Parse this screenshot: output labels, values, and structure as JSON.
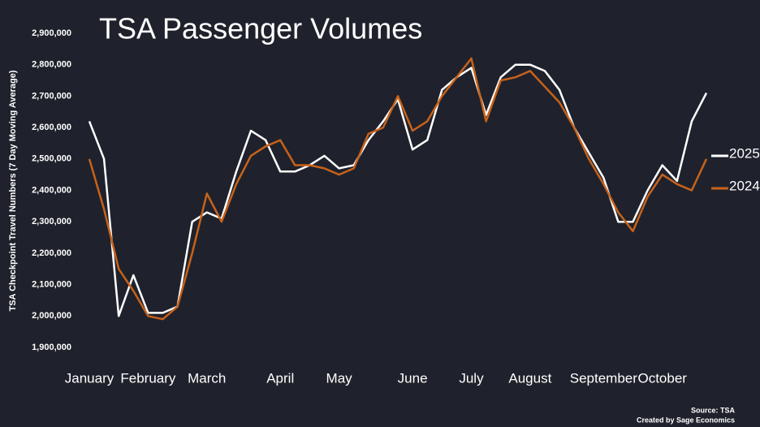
{
  "chart_data": {
    "type": "line",
    "title": "TSA Passenger Volumes",
    "y_label": "TSA Checkpoint Travel Numbers (7 Day Moving Average)",
    "source": "Source: TSA",
    "credit": "Created by Sage Economics",
    "categories": [
      "January",
      null,
      null,
      null,
      "February",
      null,
      null,
      null,
      "March",
      null,
      null,
      null,
      null,
      "April",
      null,
      null,
      null,
      "May",
      null,
      null,
      null,
      null,
      "June",
      null,
      null,
      null,
      "July",
      null,
      null,
      null,
      "August",
      null,
      null,
      null,
      null,
      "September",
      null,
      null,
      null,
      "October",
      null,
      null,
      null
    ],
    "series": [
      {
        "name": "2025",
        "color": "#ffffff",
        "values": [
          2620000,
          2500000,
          2000000,
          2130000,
          2010000,
          2010000,
          2030000,
          2300000,
          2330000,
          2310000,
          2460000,
          2590000,
          2560000,
          2460000,
          2460000,
          2480000,
          2510000,
          2470000,
          2480000,
          2560000,
          2620000,
          2690000,
          2530000,
          2560000,
          2720000,
          2760000,
          2790000,
          2640000,
          2760000,
          2800000,
          2800000,
          2780000,
          2720000,
          2600000,
          2520000,
          2440000,
          2300000,
          2300000,
          2400000,
          2480000,
          2430000,
          2620000,
          2710000
        ]
      },
      {
        "name": "2024",
        "color": "#c8621a",
        "values": [
          2500000,
          2340000,
          2150000,
          2080000,
          2000000,
          1990000,
          2030000,
          2200000,
          2390000,
          2300000,
          2420000,
          2510000,
          2540000,
          2560000,
          2480000,
          2480000,
          2470000,
          2450000,
          2470000,
          2580000,
          2600000,
          2700000,
          2590000,
          2620000,
          2700000,
          2760000,
          2820000,
          2620000,
          2750000,
          2760000,
          2780000,
          2730000,
          2680000,
          2600000,
          2500000,
          2420000,
          2330000,
          2270000,
          2380000,
          2450000,
          2420000,
          2400000,
          2500000
        ]
      }
    ],
    "ylim": [
      1900000,
      2900000
    ],
    "yticks": [
      {
        "value": 1900000,
        "label": "1,900,000"
      },
      {
        "value": 2000000,
        "label": "2,000,000"
      },
      {
        "value": 2100000,
        "label": "2,100,000"
      },
      {
        "value": 2200000,
        "label": "2,200,000"
      },
      {
        "value": 2300000,
        "label": "2,300,000"
      },
      {
        "value": 2400000,
        "label": "2,400,000"
      },
      {
        "value": 2500000,
        "label": "2,500,000"
      },
      {
        "value": 2600000,
        "label": "2,600,000"
      },
      {
        "value": 2700000,
        "label": "2,700,000"
      },
      {
        "value": 2800000,
        "label": "2,800,000"
      },
      {
        "value": 2900000,
        "label": "2,900,000"
      }
    ],
    "legend": "right",
    "grid": false
  }
}
